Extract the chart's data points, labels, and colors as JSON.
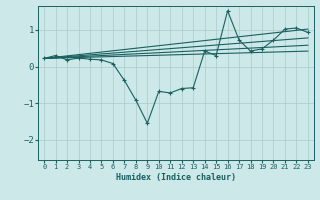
{
  "title": "",
  "xlabel": "Humidex (Indice chaleur)",
  "background_color": "#cce8e8",
  "grid_color": "#aacccc",
  "line_color": "#1a6060",
  "xlim": [
    -0.5,
    23.5
  ],
  "ylim": [
    -2.55,
    1.65
  ],
  "yticks": [
    -2,
    -1,
    0,
    1
  ],
  "xticks": [
    0,
    1,
    2,
    3,
    4,
    5,
    6,
    7,
    8,
    9,
    10,
    11,
    12,
    13,
    14,
    15,
    16,
    17,
    18,
    19,
    20,
    21,
    22,
    23
  ],
  "line1_x": [
    0,
    1,
    2,
    3,
    4,
    5,
    6,
    7,
    8,
    9,
    10,
    11,
    12,
    13,
    14,
    15,
    16,
    17,
    18,
    19,
    20,
    21,
    22,
    23
  ],
  "line1_y": [
    0.22,
    0.3,
    0.18,
    0.23,
    0.2,
    0.18,
    0.08,
    -0.38,
    -0.92,
    -1.55,
    -0.68,
    -0.72,
    -0.6,
    -0.58,
    0.42,
    0.3,
    1.52,
    0.72,
    0.42,
    0.48,
    0.72,
    1.02,
    1.05,
    0.93
  ],
  "line2_x": [
    0,
    23
  ],
  "line2_y": [
    0.22,
    1.02
  ],
  "line3_x": [
    0,
    23
  ],
  "line3_y": [
    0.22,
    0.78
  ],
  "line4_x": [
    0,
    23
  ],
  "line4_y": [
    0.22,
    0.58
  ],
  "line5_x": [
    0,
    23
  ],
  "line5_y": [
    0.22,
    0.42
  ]
}
